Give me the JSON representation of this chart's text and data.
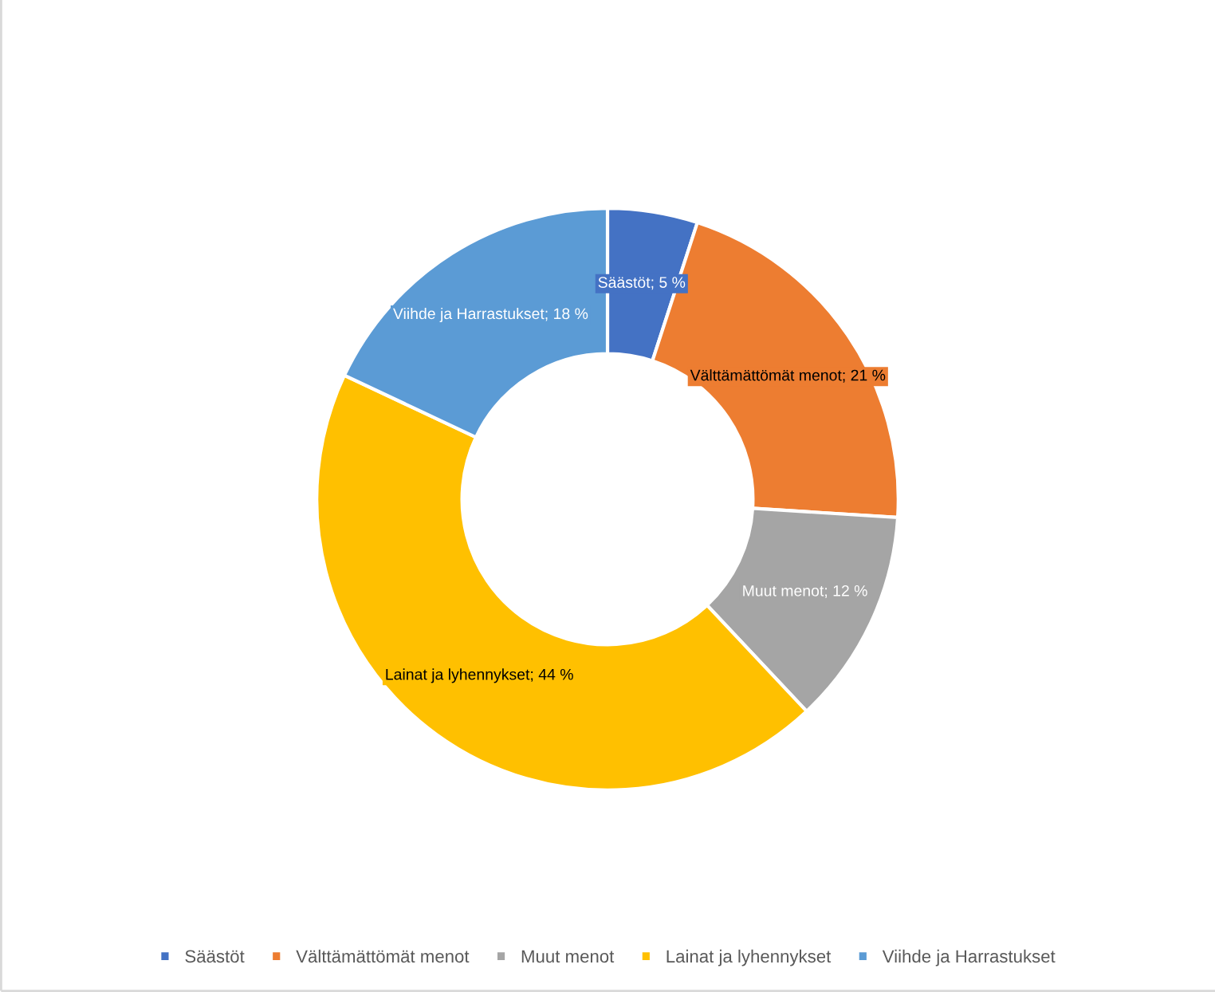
{
  "chart_data": {
    "type": "donut",
    "categories": [
      "Säästöt",
      "Välttämättömät menot",
      "Muut menot",
      "Lainat ja lyhennykset",
      "Viihde ja Harrastukset"
    ],
    "values": [
      5,
      21,
      12,
      44,
      18
    ],
    "colors": [
      "#4472c4",
      "#ed7d31",
      "#a5a5a5",
      "#ffc000",
      "#5b9bd5"
    ],
    "value_labels": [
      "Säästöt; 5 %",
      "Välttämättömät menot; 21 %",
      "Muut menot; 12 %",
      "Lainat ja lyhennykset; 44 %",
      "Viihde ja Harrastukset; 18 %"
    ],
    "legend": "bottom"
  }
}
